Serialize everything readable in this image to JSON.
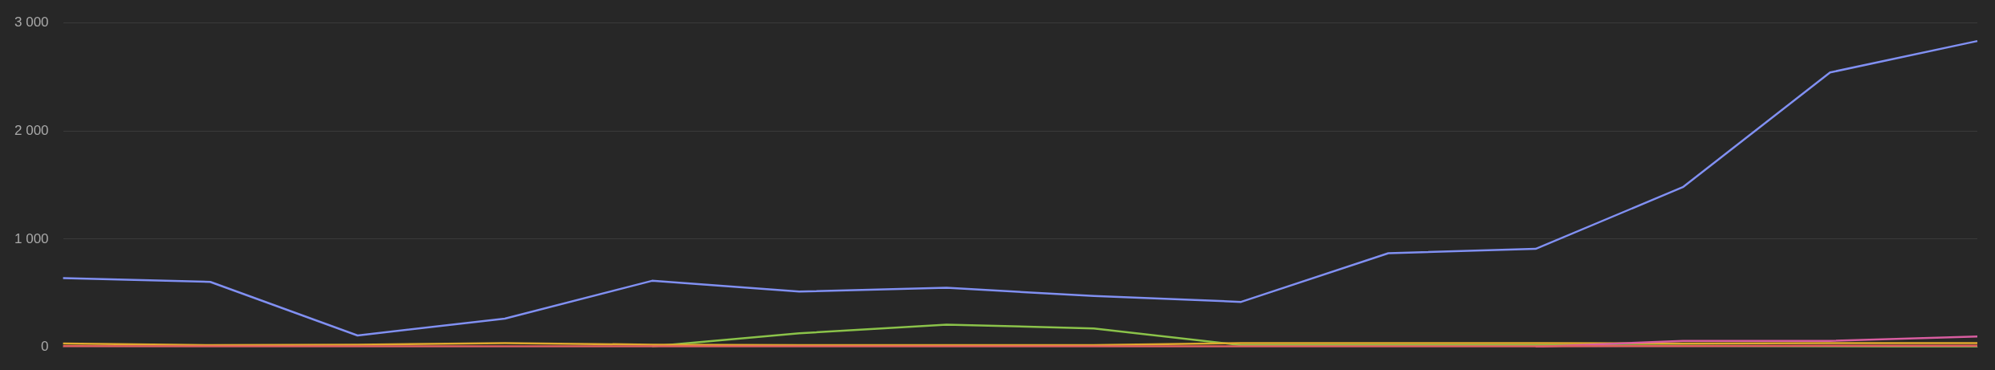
{
  "chart_data": {
    "type": "line",
    "categories": [
      null,
      null,
      null,
      null,
      null,
      null,
      null,
      null,
      null,
      null,
      null,
      null,
      null,
      null
    ],
    "series": [
      {
        "color": "#8190f2",
        "values": [
          640,
          605,
          110,
          265,
          615,
          515,
          550,
          475,
          420,
          870,
          910,
          1480,
          2540,
          2830
        ]
      },
      {
        "color": "#8bc34a",
        "values": [
          null,
          null,
          null,
          null,
          10,
          130,
          210,
          175,
          20,
          20,
          20,
          15,
          10,
          5
        ]
      },
      {
        "color": "#e0a82e",
        "values": [
          35,
          20,
          25,
          40,
          25,
          20,
          20,
          20,
          40,
          40,
          40,
          35,
          40,
          40
        ]
      },
      {
        "color": "#d85da0",
        "values": [
          null,
          null,
          null,
          null,
          null,
          null,
          null,
          null,
          null,
          null,
          5,
          60,
          60,
          100
        ]
      },
      {
        "color": "#e35d5d",
        "values": [
          12,
          10,
          10,
          10,
          10,
          10,
          10,
          10,
          10,
          10,
          10,
          12,
          15,
          15
        ]
      }
    ],
    "ylim": [
      0,
      3000
    ],
    "yticks": [
      {
        "value": 0,
        "label": "0"
      },
      {
        "value": 1000,
        "label": "1 000"
      },
      {
        "value": 2000,
        "label": "2 000"
      },
      {
        "value": 3000,
        "label": "3 000"
      }
    ],
    "grid": "y",
    "legend": false,
    "marker": "none",
    "line_style": "solid"
  }
}
